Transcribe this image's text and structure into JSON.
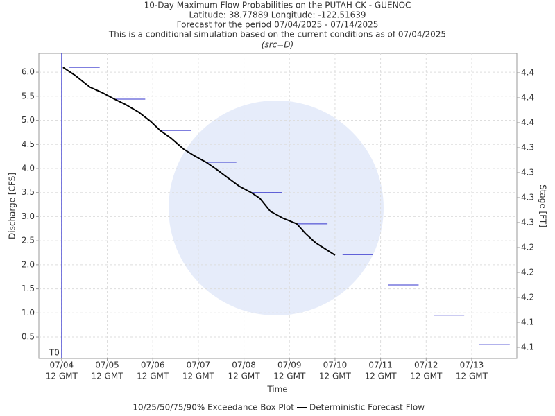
{
  "chart_data": {
    "type": "line",
    "title": "10-Day Maximum Flow Probabilities on the PUTAH CK - GUENOC",
    "subtitles": [
      "Latitude: 38.77889 Longitude: -122.51639",
      "Forecast for the period 07/04/2025 - 07/14/2025",
      "This is a conditional simulation based on the current conditions as of 07/04/2025",
      "(src=D)"
    ],
    "x_label": "Time",
    "y_label": "Discharge [CFS]",
    "y2_label": "Stage [FT]",
    "t0_label": "T0",
    "t0_x": 0,
    "xlim": [
      -0.5,
      9.99
    ],
    "xticks": [
      {
        "value": 0,
        "label": [
          "07/04",
          "12 GMT"
        ]
      },
      {
        "value": 1,
        "label": [
          "07/05",
          "12 GMT"
        ]
      },
      {
        "value": 2,
        "label": [
          "07/06",
          "12 GMT"
        ]
      },
      {
        "value": 3,
        "label": [
          "07/07",
          "12 GMT"
        ]
      },
      {
        "value": 4,
        "label": [
          "07/08",
          "12 GMT"
        ]
      },
      {
        "value": 5,
        "label": [
          "07/09",
          "12 GMT"
        ]
      },
      {
        "value": 6,
        "label": [
          "07/10",
          "12 GMT"
        ]
      },
      {
        "value": 7,
        "label": [
          "07/11",
          "12 GMT"
        ]
      },
      {
        "value": 8,
        "label": [
          "07/12",
          "12 GMT"
        ]
      },
      {
        "value": 9,
        "label": [
          "07/13",
          "12 GMT"
        ]
      }
    ],
    "ylim": [
      0.054,
      6.39
    ],
    "yticks": [
      {
        "value": 0.5,
        "label": "0.5"
      },
      {
        "value": 1,
        "label": "1.0"
      },
      {
        "value": 1.5,
        "label": "1.5"
      },
      {
        "value": 2,
        "label": "2.0"
      },
      {
        "value": 2.5,
        "label": "2.5"
      },
      {
        "value": 3,
        "label": "3.0"
      },
      {
        "value": 3.5,
        "label": "3.5"
      },
      {
        "value": 4,
        "label": "4.0"
      },
      {
        "value": 4.5,
        "label": "4.5"
      },
      {
        "value": 5,
        "label": "5.0"
      },
      {
        "value": 5.5,
        "label": "5.5"
      },
      {
        "value": 6,
        "label": "6.0"
      }
    ],
    "y2lim": [
      4.108,
      4.438
    ],
    "y2ticks": [
      {
        "value": 4.12,
        "label": "4.1"
      },
      {
        "value": 4.147,
        "label": "4.1"
      },
      {
        "value": 4.174,
        "label": "4.2"
      },
      {
        "value": 4.201,
        "label": "4.2"
      },
      {
        "value": 4.228,
        "label": "4.2"
      },
      {
        "value": 4.255,
        "label": "4.3"
      },
      {
        "value": 4.282,
        "label": "4.3"
      },
      {
        "value": 4.309,
        "label": "4.3"
      },
      {
        "value": 4.336,
        "label": "4.3"
      },
      {
        "value": 4.363,
        "label": "4.4"
      },
      {
        "value": 4.39,
        "label": "4.4"
      },
      {
        "value": 4.417,
        "label": "4.4"
      }
    ],
    "grid": true,
    "boxes": {
      "name": "10/25/50/75/90% Exceedance Box Plot",
      "color": "#3333cc",
      "x": [
        0.5,
        1.5,
        2.5,
        3.5,
        4.5,
        5.5,
        6.5,
        7.5,
        8.5,
        9.5
      ],
      "values": [
        6.1,
        5.44,
        4.79,
        4.13,
        3.5,
        2.85,
        2.21,
        1.58,
        0.95,
        0.34
      ]
    },
    "series": [
      {
        "name": "Deterministic Forecast Flow",
        "color": "#000000",
        "x": [
          0.03,
          0.3,
          0.62,
          0.9,
          1.16,
          1.4,
          1.69,
          1.95,
          2.16,
          2.4,
          2.68,
          2.9,
          3.17,
          3.4,
          3.67,
          3.9,
          4.16,
          4.35,
          4.58,
          4.85,
          5.16,
          5.35,
          5.57,
          5.8,
          6.0
        ],
        "values": [
          6.1,
          5.93,
          5.69,
          5.57,
          5.44,
          5.33,
          5.17,
          4.98,
          4.79,
          4.63,
          4.4,
          4.27,
          4.13,
          3.98,
          3.79,
          3.63,
          3.5,
          3.38,
          3.11,
          2.97,
          2.85,
          2.65,
          2.46,
          2.32,
          2.2
        ]
      }
    ]
  }
}
